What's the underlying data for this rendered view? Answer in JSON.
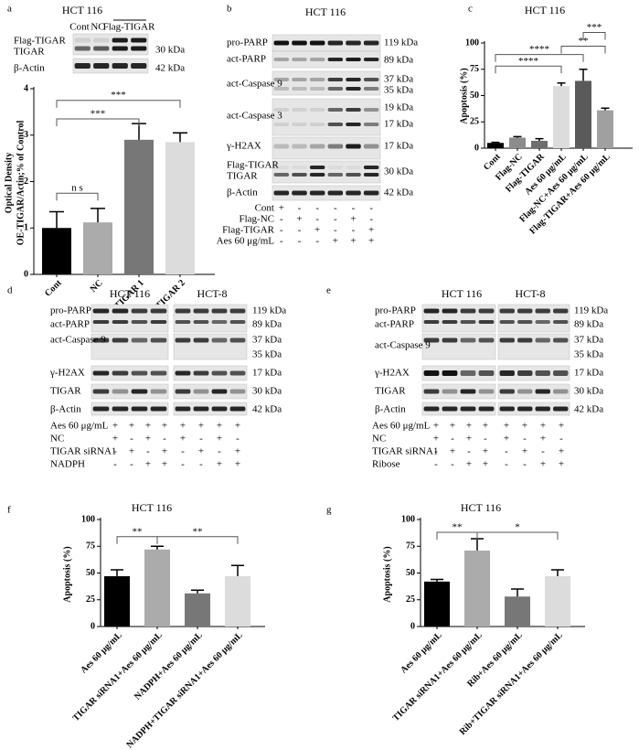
{
  "chart_data": [
    {
      "type": "bar",
      "panel": "a",
      "title": "HCT 116",
      "y_label": [
        "Optical Density",
        "OE-TIGAR/Actin;% of Control"
      ],
      "categories": [
        "Cont",
        "NC",
        "Flag-TIGAR 1",
        "Flag-TIGAR 2"
      ],
      "values": [
        1.0,
        1.12,
        2.9,
        2.85
      ],
      "errors": [
        0.35,
        0.3,
        0.35,
        0.2
      ],
      "colors": [
        "#000000",
        "#ababab",
        "#777777",
        "#dcdcdc"
      ],
      "ylim": [
        0,
        4
      ],
      "yticks": [
        0,
        1,
        2,
        3,
        4
      ],
      "annotations": [
        "n s",
        "***",
        "***"
      ]
    },
    {
      "type": "bar",
      "panel": "c",
      "title": "HCT 116",
      "y_label": [
        "Apoptosis (%)"
      ],
      "categories": [
        "Cont",
        "Flag-NC",
        "Flag-TIGAR",
        "Aes 60 μg/mL",
        "Flag-NC+Aes 60 μg/mL",
        "Flag-TIGAR+Aes 60 μg/mL"
      ],
      "values": [
        5,
        10,
        7,
        59,
        64,
        36
      ],
      "errors": [
        0.5,
        1,
        2,
        3,
        11,
        2
      ],
      "colors": [
        "#000000",
        "#8c8c8c",
        "#6e6e6e",
        "#dcdcdc",
        "#5a5a5a",
        "#a0a0a0"
      ],
      "ylim": [
        0,
        100
      ],
      "yticks": [
        0,
        25,
        50,
        75,
        100
      ],
      "annotations": [
        "****",
        "****",
        "**",
        "***"
      ]
    },
    {
      "type": "bar",
      "panel": "f",
      "title": "HCT 116",
      "y_label": [
        "Apoptosis (%)"
      ],
      "categories": [
        "Aes 60 μg/mL",
        "TIGAR siRNA1+Aes 60 μg/mL",
        "NADPH+Aes 60 μg/mL",
        "NADPH+TIGAR siRNA1+Aes 60 μg/mL"
      ],
      "values": [
        47,
        72,
        31,
        47
      ],
      "errors": [
        6,
        3,
        3,
        10
      ],
      "colors": [
        "#000000",
        "#ababab",
        "#777777",
        "#dcdcdc"
      ],
      "ylim": [
        0,
        100
      ],
      "yticks": [
        0,
        25,
        50,
        75,
        100
      ],
      "annotations": [
        "**",
        "**"
      ]
    },
    {
      "type": "bar",
      "panel": "g",
      "title": "HCT 116",
      "y_label": [
        "Apoptosis (%)"
      ],
      "categories": [
        "Aes 60 μg/mL",
        "TIGAR siRNA1+Aes 60 μg/mL",
        "Rib+Aes 60 μg/mL",
        "Rib+TIGAR siRNA1+Aes 60 μg/mL"
      ],
      "values": [
        42,
        71,
        28,
        47
      ],
      "errors": [
        2,
        11,
        7,
        6
      ],
      "colors": [
        "#000000",
        "#ababab",
        "#777777",
        "#dcdcdc"
      ],
      "ylim": [
        0,
        100
      ],
      "yticks": [
        0,
        25,
        50,
        75,
        100
      ],
      "annotations": [
        "**",
        "*"
      ]
    }
  ],
  "blots": [
    {
      "column_labels": [
        "Cont",
        "NC",
        "Flag-TIGAR"
      ],
      "left_labels": [
        "Flag-TIGAR",
        "TIGAR",
        "β-Actin"
      ],
      "right_labels": [
        "30 kDa",
        "42 kDa"
      ]
    },
    {
      "panel": "b",
      "titles": [
        "HCT 116"
      ],
      "left_labels": [
        "pro-PARP",
        "act-PARP",
        "act-Caspase 9",
        "act-Caspase 3",
        "γ-H2AX",
        "Flag-TIGAR",
        "TIGAR",
        "β-Actin"
      ],
      "right_labels": [
        "119 kDa",
        "89 kDa",
        "37 kDa",
        "35 kDa",
        "19 kDa",
        "17 kDa",
        "17 kDa",
        "30 kDa",
        "42 kDa"
      ],
      "conditions": [
        {
          "label": "Cont",
          "signs": [
            "+",
            "-",
            "-",
            "-",
            "-",
            "-"
          ]
        },
        {
          "label": "Flag-NC",
          "signs": [
            "-",
            "+",
            "-",
            "-",
            "+",
            "-"
          ]
        },
        {
          "label": "Flag-TIGAR",
          "signs": [
            "-",
            "-",
            "+",
            "-",
            "-",
            "+"
          ]
        },
        {
          "label": "Aes 60 μg/mL",
          "signs": [
            "-",
            "-",
            "-",
            "+",
            "+",
            "+"
          ]
        }
      ]
    },
    {
      "panel": "d",
      "titles": [
        "HCT 116",
        "HCT-8"
      ],
      "left_labels": [
        "pro-PARP",
        "act-PARP",
        "act-Caspase 9",
        "γ-H2AX",
        "TIGAR",
        "β-Actin"
      ],
      "right_labels": [
        "119 kDa",
        "89 kDa",
        "37 kDa",
        "35 kDa",
        "17 kDa",
        "30 kDa",
        "42 kDa"
      ],
      "conditions": [
        {
          "label": "Aes 60 μg/mL",
          "signs": [
            "+",
            "+",
            "+",
            "+",
            "+",
            "+",
            "+",
            "+"
          ]
        },
        {
          "label": "NC",
          "signs": [
            "+",
            "-",
            "+",
            "-",
            "+",
            "-",
            "+",
            "-"
          ]
        },
        {
          "label": "TIGAR siRNA1",
          "signs": [
            "-",
            "+",
            "-",
            "+",
            "-",
            "+",
            "-",
            "+"
          ]
        },
        {
          "label": "NADPH",
          "signs": [
            "-",
            "-",
            "+",
            "+",
            "-",
            "-",
            "+",
            "+"
          ]
        }
      ]
    },
    {
      "panel": "e",
      "titles": [
        "HCT 116",
        "HCT-8"
      ],
      "left_labels": [
        "pro-PARP",
        "act-PARP",
        "act-Caspase 9",
        "γ-H2AX",
        "TIGAR",
        "β-Actin"
      ],
      "right_labels": [
        "119 kDa",
        "89 kDa",
        "37 kDa",
        "35 kDa",
        "17 kDa",
        "30 kDa",
        "42 kDa"
      ],
      "conditions": [
        {
          "label": "Aes 60 μg/mL",
          "signs": [
            "+",
            "+",
            "+",
            "+",
            "+",
            "+",
            "+",
            "+"
          ]
        },
        {
          "label": "NC",
          "signs": [
            "+",
            "-",
            "+",
            "-",
            "+",
            "-",
            "+",
            "-"
          ]
        },
        {
          "label": "TIGAR siRNA1",
          "signs": [
            "-",
            "+",
            "-",
            "+",
            "-",
            "+",
            "-",
            "+"
          ]
        },
        {
          "label": "Ribose",
          "signs": [
            "-",
            "-",
            "+",
            "+",
            "-",
            "-",
            "+",
            "+"
          ]
        }
      ]
    }
  ]
}
